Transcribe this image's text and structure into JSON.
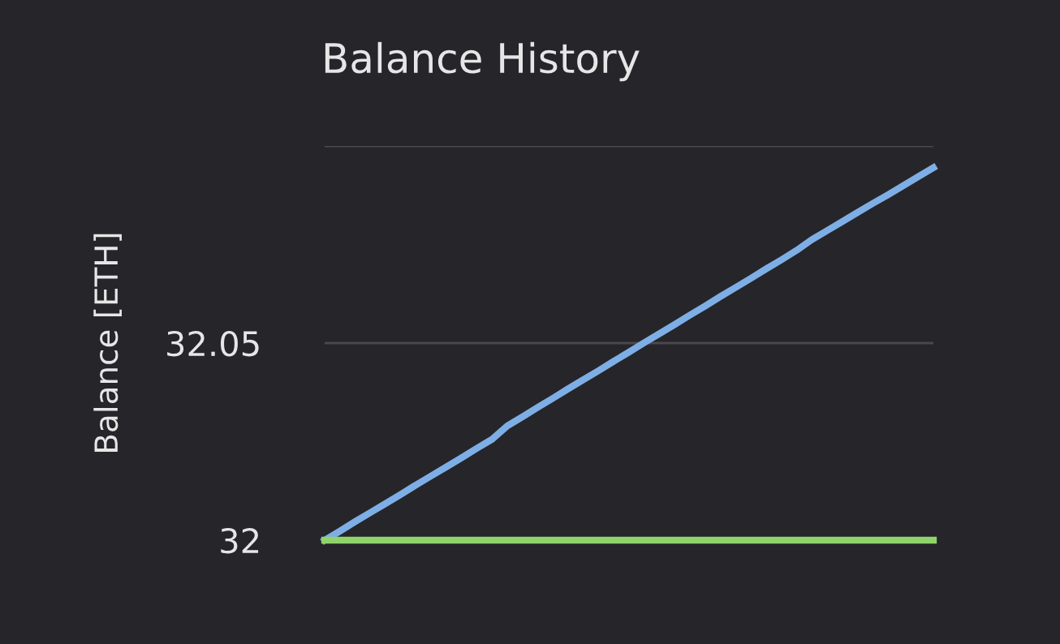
{
  "chart_data": {
    "type": "line",
    "title": "Balance History",
    "ylabel": "Balance [ETH]",
    "categories": [
      null,
      null,
      null,
      null,
      null,
      null,
      null,
      null,
      null,
      null,
      null,
      null,
      null,
      null,
      null,
      null,
      null,
      null,
      null,
      null,
      null,
      null,
      null,
      null,
      null,
      null,
      null,
      null,
      null,
      null,
      null,
      null,
      null,
      null,
      null,
      null,
      null,
      null,
      null,
      null,
      null
    ],
    "series": [
      {
        "color": "#7eaee6",
        "values": [
          32.0,
          32.0023,
          32.0047,
          32.007,
          32.0093,
          32.0116,
          32.014,
          32.0163,
          32.0186,
          32.0209,
          32.0233,
          32.0256,
          32.029,
          32.0313,
          32.0337,
          32.036,
          32.0384,
          32.0407,
          32.043,
          32.0454,
          32.0477,
          32.0501,
          32.0524,
          32.0547,
          32.0571,
          32.0594,
          32.0618,
          32.0641,
          32.0664,
          32.0688,
          32.0711,
          32.0735,
          32.0762,
          32.0785,
          32.0808,
          32.0831,
          32.0854,
          32.0876,
          32.0899,
          32.0922,
          32.0945
        ]
      },
      {
        "color": "#8ed46a",
        "values": [
          32,
          32,
          32,
          32,
          32,
          32,
          32,
          32,
          32,
          32,
          32,
          32,
          32,
          32,
          32,
          32,
          32,
          32,
          32,
          32,
          32,
          32,
          32,
          32,
          32,
          32,
          32,
          32,
          32,
          32,
          32,
          32,
          32,
          32,
          32,
          32,
          32,
          32,
          32,
          32,
          32
        ]
      }
    ],
    "ylim": [
      32,
      32.1
    ],
    "yticks": [
      32,
      32.05,
      {
        "value": 32.1,
        "label": null
      }
    ],
    "grid": "y"
  }
}
